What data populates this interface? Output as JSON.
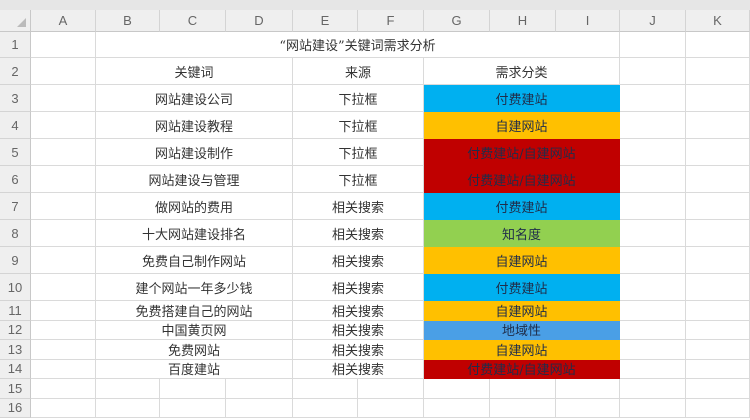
{
  "columns": [
    "A",
    "B",
    "C",
    "D",
    "E",
    "F",
    "G",
    "H",
    "I",
    "J",
    "K"
  ],
  "rows": [
    "1",
    "2",
    "3",
    "4",
    "5",
    "6",
    "7",
    "8",
    "9",
    "10",
    "11",
    "12",
    "13",
    "14",
    "15",
    "16"
  ],
  "title": "“网站建设”关键词需求分析",
  "headers": {
    "keyword": "关键词",
    "source": "来源",
    "category": "需求分类"
  },
  "colors": {
    "付费建站": "#00b0f0",
    "自建网站": "#ffc000",
    "付费建站/自建网站": "#c00000",
    "知名度": "#92d050",
    "地域性": "#4a9fe6"
  },
  "records": [
    {
      "keyword": "网站建设公司",
      "source": "下拉框",
      "category": "付费建站"
    },
    {
      "keyword": "网站建设教程",
      "source": "下拉框",
      "category": "自建网站"
    },
    {
      "keyword": "网站建设制作",
      "source": "下拉框",
      "category": "付费建站/自建网站"
    },
    {
      "keyword": "网站建设与管理",
      "source": "下拉框",
      "category": "付费建站/自建网站"
    },
    {
      "keyword": "做网站的费用",
      "source": "相关搜索",
      "category": "付费建站"
    },
    {
      "keyword": "十大网站建设排名",
      "source": "相关搜索",
      "category": "知名度"
    },
    {
      "keyword": "免费自己制作网站",
      "source": "相关搜索",
      "category": "自建网站"
    },
    {
      "keyword": "建个网站一年多少钱",
      "source": "相关搜索",
      "category": "付费建站"
    },
    {
      "keyword": "免费搭建自己的网站",
      "source": "相关搜索",
      "category": "自建网站"
    },
    {
      "keyword": "中国黄页网",
      "source": "相关搜索",
      "category": "地域性"
    },
    {
      "keyword": "免费网站",
      "source": "相关搜索",
      "category": "自建网站"
    },
    {
      "keyword": "百度建站",
      "source": "相关搜索",
      "category": "付费建站/自建网站"
    }
  ]
}
